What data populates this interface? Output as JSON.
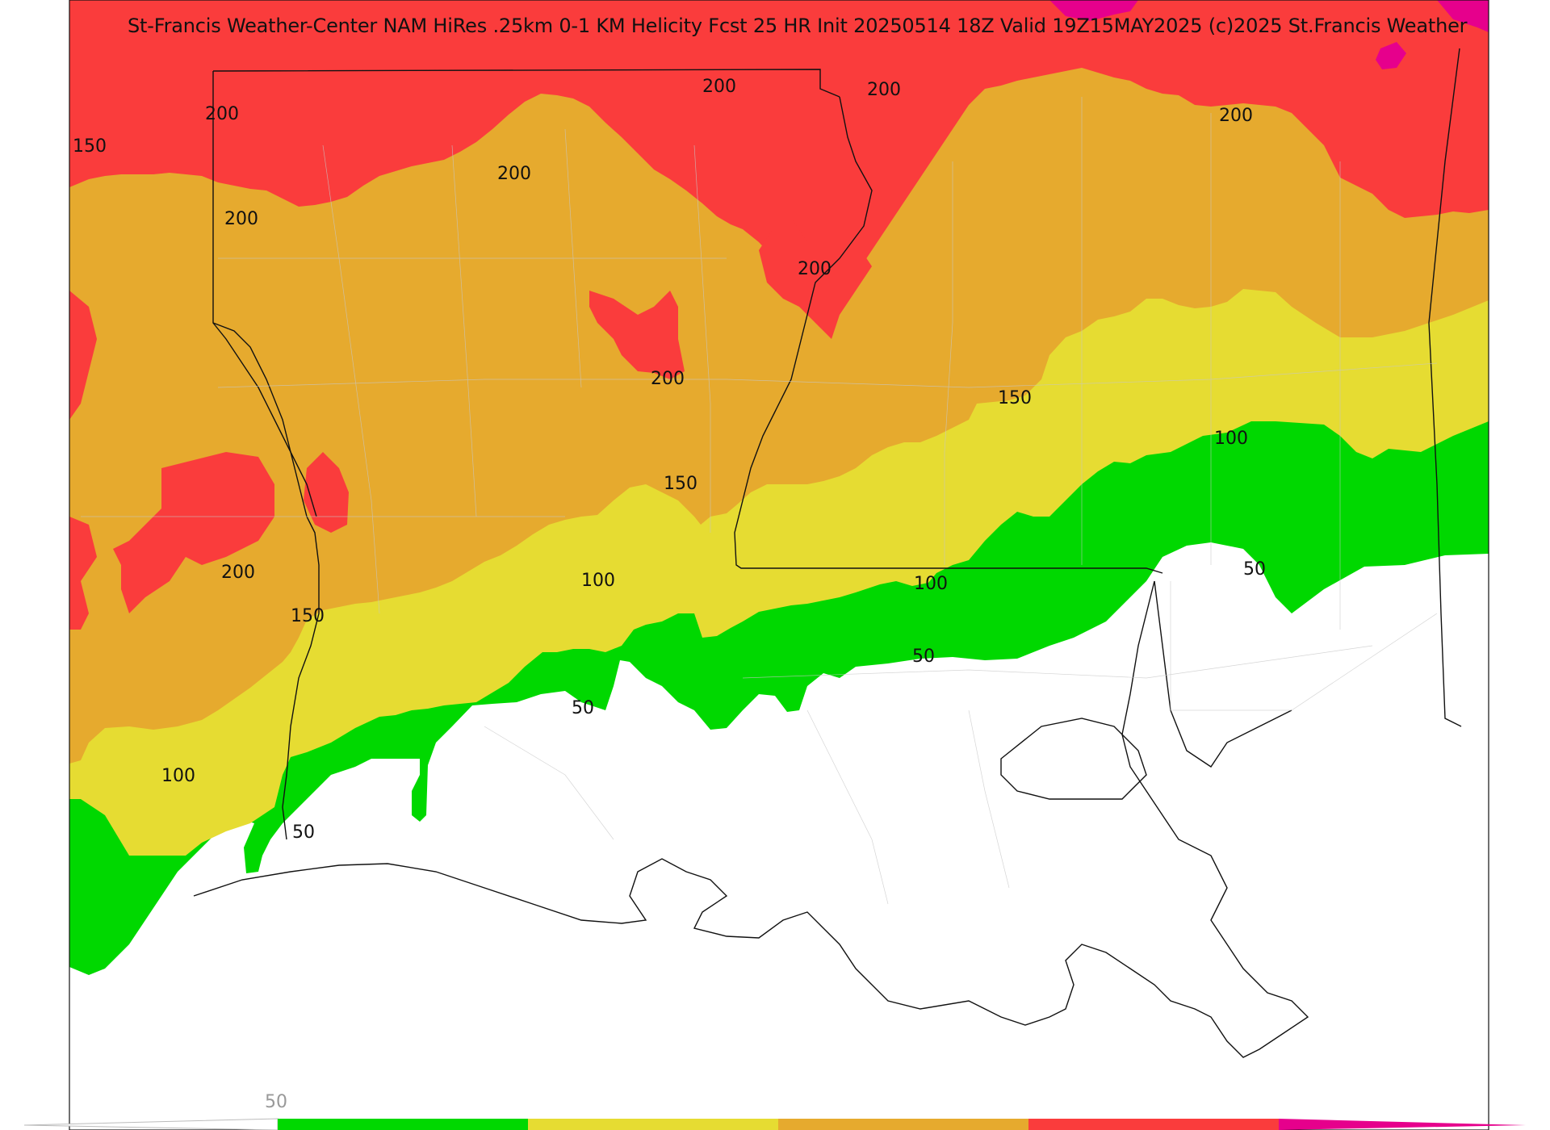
{
  "title": "St-Francis Weather-Center NAM HiRes .25km 0-1 KM Helicity Fcst 25 HR Init 20250514 18Z  Valid 19Z15MAY2025    (c)2025 St.Francis Weather",
  "contour_levels": [
    "50",
    "100",
    "150",
    "200"
  ],
  "fill_colors": {
    "below_50": "#ffffff",
    "50_100": "#00d800",
    "100_150": "#e6dc32",
    "150_200": "#e6aa2e",
    "200_250": "#fa3c3c",
    "above_250": "#e6008c"
  },
  "colorbar": {
    "tick_label": "50",
    "colors": [
      "#00d800",
      "#e6dc32",
      "#e6aa2e",
      "#fa3c3c",
      "#e6008c"
    ]
  },
  "contour_labels": [
    {
      "text": "200"
    },
    {
      "text": "200"
    },
    {
      "text": "200"
    },
    {
      "text": "200"
    },
    {
      "text": "200"
    },
    {
      "text": "200"
    },
    {
      "text": "200"
    },
    {
      "text": "200"
    },
    {
      "text": "150"
    },
    {
      "text": "150"
    },
    {
      "text": "150"
    },
    {
      "text": "150"
    },
    {
      "text": "100"
    },
    {
      "text": "100"
    },
    {
      "text": "100"
    },
    {
      "text": "100"
    },
    {
      "text": "50"
    },
    {
      "text": "50"
    },
    {
      "text": "50"
    },
    {
      "text": "50"
    }
  ]
}
